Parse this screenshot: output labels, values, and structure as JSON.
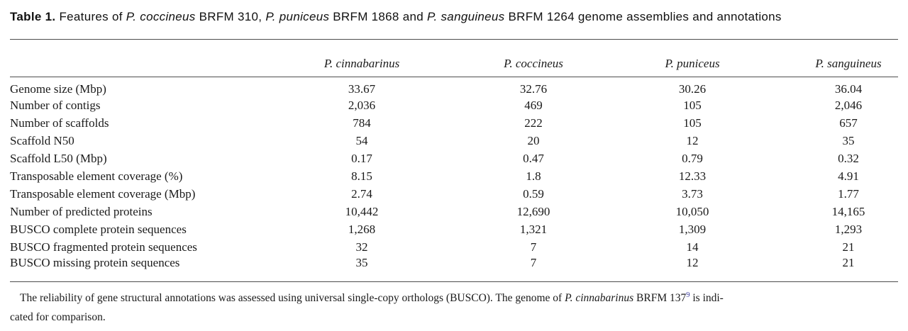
{
  "colors": {
    "text": "#1a1a1a",
    "rule": "#4d4d4d",
    "citation_link": "#3a3a9e"
  },
  "title": {
    "bold": "Table 1.",
    "t1": " Features of ",
    "species1": "P. coccineus",
    "t2": " BRFM 310, ",
    "species2": "P. puniceus",
    "t3": " BRFM 1868 and ",
    "species3": "P. sanguineus",
    "t4": " BRFM 1264 genome assemblies and annotations"
  },
  "table": {
    "row_header_label": "",
    "columns": [
      "P. cinnabarinus",
      "P. coccineus",
      "P. puniceus",
      "P. sanguineus"
    ],
    "rows": [
      {
        "label": "Genome size (Mbp)",
        "values": [
          "33.67",
          "32.76",
          "30.26",
          "36.04"
        ]
      },
      {
        "label": "Number of contigs",
        "values": [
          "2,036",
          "469",
          "105",
          "2,046"
        ]
      },
      {
        "label": "Number of scaffolds",
        "values": [
          "784",
          "222",
          "105",
          "657"
        ]
      },
      {
        "label": "Scaffold N50",
        "values": [
          "54",
          "20",
          "12",
          "35"
        ]
      },
      {
        "label": "Scaffold L50 (Mbp)",
        "values": [
          "0.17",
          "0.47",
          "0.79",
          "0.32"
        ]
      },
      {
        "label": "Transposable element coverage (%)",
        "values": [
          "8.15",
          "1.8",
          "12.33",
          "4.91"
        ]
      },
      {
        "label": "Transposable element coverage (Mbp)",
        "values": [
          "2.74",
          "0.59",
          "3.73",
          "1.77"
        ]
      },
      {
        "label": "Number of predicted proteins",
        "values": [
          "10,442",
          "12,690",
          "10,050",
          "14,165"
        ]
      },
      {
        "label": "BUSCO complete protein sequences",
        "values": [
          "1,268",
          "1,321",
          "1,309",
          "1,293"
        ]
      },
      {
        "label": "BUSCO fragmented protein sequences",
        "values": [
          "32",
          "7",
          "14",
          "21"
        ]
      },
      {
        "label": "BUSCO missing protein sequences",
        "values": [
          "35",
          "7",
          "12",
          "21"
        ]
      }
    ]
  },
  "footnote": {
    "line1_t1": "The reliability of gene structural annotations was assessed using universal single-copy orthologs (BUSCO). The genome of ",
    "line1_species": "P. cinnabarinus",
    "line1_t2": " BRFM 137",
    "line1_sup": "9",
    "line1_t3": " is indi-",
    "line2": "cated for comparison."
  }
}
